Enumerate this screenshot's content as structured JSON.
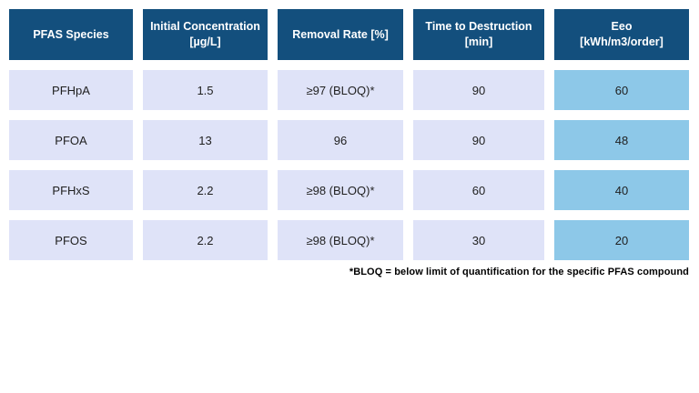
{
  "colors": {
    "header_bg": "#134F7D",
    "header_text": "#FFFFFF",
    "row_bg": "#DFE3F8",
    "eeo_highlight_bg": "#8DC8E8",
    "body_text": "#1F1F1F",
    "footnote_text": "#000000"
  },
  "chart_data": {
    "type": "table",
    "columns": [
      "PFAS Species",
      "Initial Concentration [µg/L]",
      "Removal Rate [%]",
      "Time to Destruction [min]",
      "Eeo [kWh/m3/order]"
    ],
    "rows": [
      [
        "PFHpA",
        "1.5",
        "≥97 (BLOQ)*",
        "90",
        "60"
      ],
      [
        "PFOA",
        "13",
        "96",
        "90",
        "48"
      ],
      [
        "PFHxS",
        "2.2",
        "≥98 (BLOQ)*",
        "60",
        "40"
      ],
      [
        "PFOS",
        "2.2",
        "≥98 (BLOQ)*",
        "30",
        "20"
      ]
    ],
    "footnote": "*BLOQ = below limit of quantification for the specific PFAS compound"
  },
  "headers": [
    {
      "line1": "PFAS Species",
      "line2": ""
    },
    {
      "line1": "Initial Concentration",
      "line2": "[µg/L]"
    },
    {
      "line1": "Removal Rate [%]",
      "line2": ""
    },
    {
      "line1": "Time to Destruction",
      "line2": "[min]"
    },
    {
      "line1": "Eeo",
      "line2": "[kWh/m3/order]"
    }
  ],
  "rows": [
    {
      "species": "PFHpA",
      "initial_concentration": "1.5",
      "removal_rate": "≥97 (BLOQ)*",
      "time_to_destruction": "90",
      "eeo": "60"
    },
    {
      "species": "PFOA",
      "initial_concentration": "13",
      "removal_rate": "96",
      "time_to_destruction": "90",
      "eeo": "48"
    },
    {
      "species": "PFHxS",
      "initial_concentration": "2.2",
      "removal_rate": "≥98 (BLOQ)*",
      "time_to_destruction": "60",
      "eeo": "40"
    },
    {
      "species": "PFOS",
      "initial_concentration": "2.2",
      "removal_rate": "≥98 (BLOQ)*",
      "time_to_destruction": "30",
      "eeo": "20"
    }
  ],
  "footnote": "*BLOQ = below limit of quantification for the specific PFAS compound"
}
